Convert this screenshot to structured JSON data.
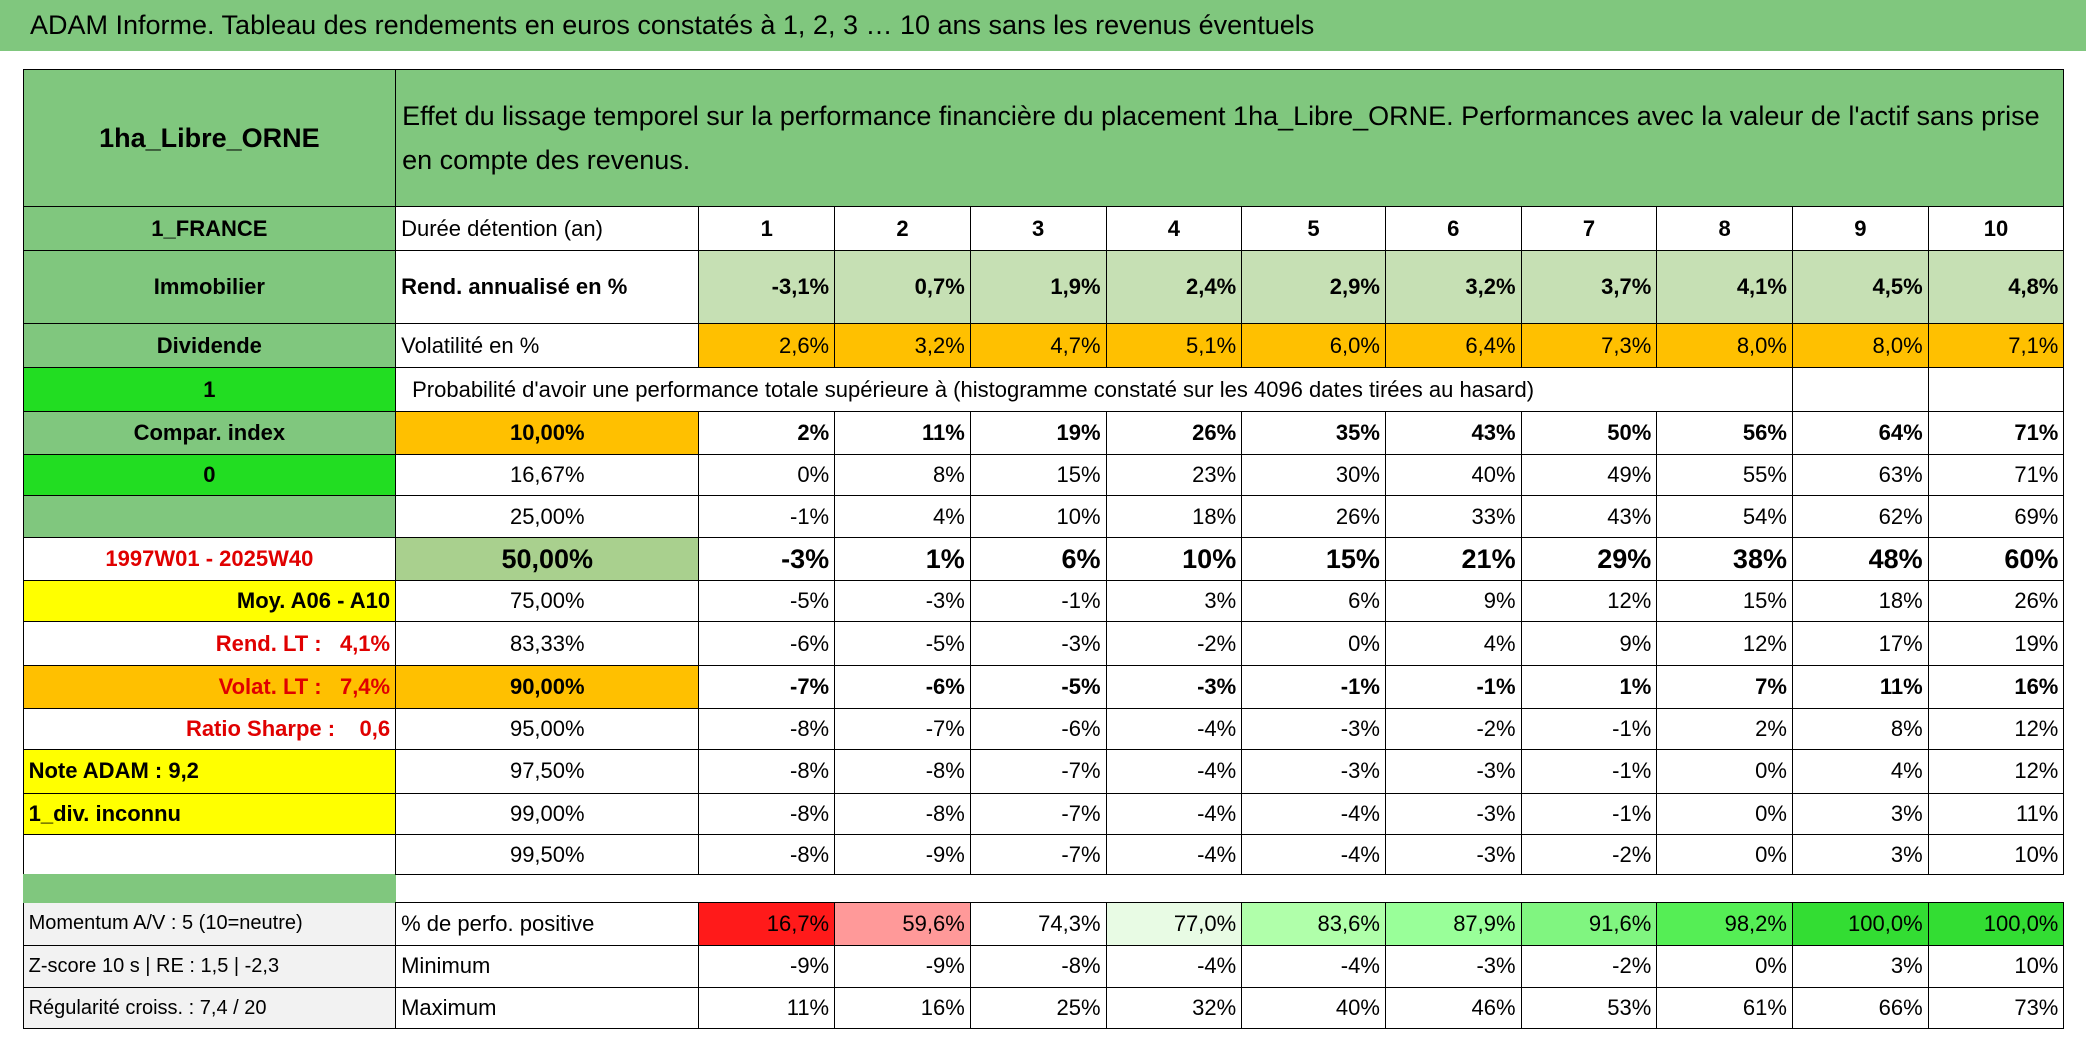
{
  "header": {
    "title": "ADAM Informe. Tableau des rendements en euros constatés à 1, 2, 3 … 10 ans sans les revenus éventuels"
  },
  "table": {
    "corner": "1ha_Libre_ORNE",
    "description": "Effet du lissage temporel sur la performance financière du placement 1ha_Libre_ORNE. Performances avec la valeur de l'actif sans prise en compte des revenus.",
    "side": [
      "1_FRANCE",
      "Immobilier",
      "Dividende",
      "1",
      "Compar. index",
      "0",
      null,
      "1997W01 - 2025W40",
      "Moy. A06 - A10",
      "Rend. LT :   4,1%",
      "Volat. LT :   7,4%",
      "Ratio Sharpe :    0,6",
      "Note ADAM : 9,2",
      "1_div. inconnu",
      null,
      "Momentum A/V : 5 (10=neutre)",
      "Z-score 10 s | RE : 1,5 | -2,3",
      "Régularité croiss. : 7,4 / 20"
    ],
    "rows": [
      [
        "Durée détention (an)",
        1,
        2,
        3,
        4,
        5,
        6,
        7,
        8,
        9,
        10
      ],
      [
        "Rend. annualisé en %",
        "-3,1%",
        "0,7%",
        "1,9%",
        "2,4%",
        "2,9%",
        "3,2%",
        "3,7%",
        "4,1%",
        "4,5%",
        "4,8%"
      ],
      [
        "Volatilité en %",
        "2,6%",
        "3,2%",
        "4,7%",
        "5,1%",
        "6,0%",
        "6,4%",
        "7,3%",
        "8,0%",
        "8,0%",
        "7,1%"
      ],
      [
        "Probabilité d'avoir une performance totale supérieure à (histogramme constaté sur les 4096 dates tirées au hasard)"
      ],
      [
        "10,00%",
        "2%",
        "11%",
        "19%",
        "26%",
        "35%",
        "43%",
        "50%",
        "56%",
        "64%",
        "71%"
      ],
      [
        "16,67%",
        "0%",
        "8%",
        "15%",
        "23%",
        "30%",
        "40%",
        "49%",
        "55%",
        "63%",
        "71%"
      ],
      [
        "25,00%",
        "-1%",
        "4%",
        "10%",
        "18%",
        "26%",
        "33%",
        "43%",
        "54%",
        "62%",
        "69%"
      ],
      [
        "50,00%",
        "-3%",
        "1%",
        "6%",
        "10%",
        "15%",
        "21%",
        "29%",
        "38%",
        "48%",
        "60%"
      ],
      [
        "75,00%",
        "-5%",
        "-3%",
        "-1%",
        "3%",
        "6%",
        "9%",
        "12%",
        "15%",
        "18%",
        "26%"
      ],
      [
        "83,33%",
        "-6%",
        "-5%",
        "-3%",
        "-2%",
        "0%",
        "4%",
        "9%",
        "12%",
        "17%",
        "19%"
      ],
      [
        "90,00%",
        "-7%",
        "-6%",
        "-5%",
        "-3%",
        "-1%",
        "-1%",
        "1%",
        "7%",
        "11%",
        "16%"
      ],
      [
        "95,00%",
        "-8%",
        "-7%",
        "-6%",
        "-4%",
        "-3%",
        "-2%",
        "-1%",
        "2%",
        "8%",
        "12%"
      ],
      [
        "97,50%",
        "-8%",
        "-8%",
        "-7%",
        "-4%",
        "-3%",
        "-3%",
        "-1%",
        "0%",
        "4%",
        "12%"
      ],
      [
        "99,00%",
        "-8%",
        "-8%",
        "-7%",
        "-4%",
        "-4%",
        "-3%",
        "-1%",
        "0%",
        "3%",
        "11%"
      ],
      [
        "99,50%",
        "-8%",
        "-9%",
        "-7%",
        "-4%",
        "-4%",
        "-3%",
        "-2%",
        "0%",
        "3%",
        "10%"
      ],
      [
        "% de perfo. positive",
        "16,7%",
        "59,6%",
        "74,3%",
        "77,0%",
        "83,6%",
        "87,9%",
        "91,6%",
        "98,2%",
        "100,0%",
        "100,0%"
      ],
      [
        "Minimum",
        "-9%",
        "-9%",
        "-8%",
        "-4%",
        "-4%",
        "-3%",
        "-2%",
        "0%",
        "3%",
        "10%"
      ],
      [
        "Maximum",
        "11%",
        "16%",
        "25%",
        "32%",
        "40%",
        "46%",
        "53%",
        "61%",
        "66%",
        "73%"
      ]
    ]
  }
}
